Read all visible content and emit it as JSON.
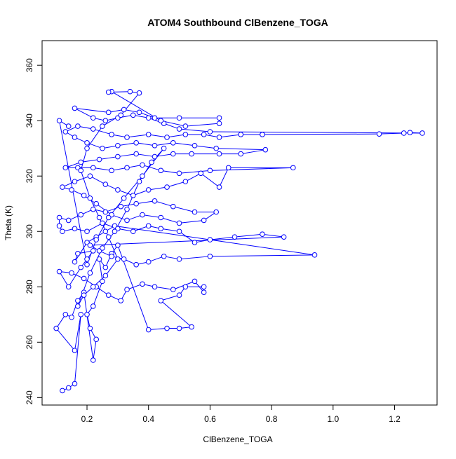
{
  "chart_data": {
    "type": "line",
    "style": "points-and-lines",
    "title": "ATOM4 Southbound ClBenzene_TOGA",
    "xlabel": "ClBenzene_TOGA",
    "ylabel": "Theta (K)",
    "xlim": [
      0.054,
      1.338
    ],
    "ylim": [
      237.3,
      368.9
    ],
    "xticks": [
      "0.2",
      "0.4",
      "0.6",
      "0.8",
      "1.0",
      "1.2"
    ],
    "xtick_values": [
      0.2,
      0.4,
      0.6,
      0.8,
      1.0,
      1.2
    ],
    "yticks": [
      "240",
      "260",
      "280",
      "300",
      "320",
      "340",
      "360"
    ],
    "ytick_values": [
      240,
      260,
      280,
      300,
      320,
      340,
      360
    ],
    "grid": false,
    "series_color": "#0000ff",
    "points": [
      [
        0.12,
        242.5
      ],
      [
        0.14,
        243.5
      ],
      [
        0.16,
        245
      ],
      [
        0.18,
        270
      ],
      [
        0.16,
        257
      ],
      [
        0.1,
        265
      ],
      [
        0.13,
        270
      ],
      [
        0.15,
        269
      ],
      [
        0.17,
        275
      ],
      [
        0.19,
        278
      ],
      [
        0.22,
        253.5
      ],
      [
        0.23,
        261
      ],
      [
        0.21,
        265
      ],
      [
        0.2,
        270
      ],
      [
        0.22,
        273
      ],
      [
        0.25,
        282
      ],
      [
        0.24,
        290
      ],
      [
        0.26,
        287
      ],
      [
        0.28,
        292
      ],
      [
        0.3,
        295
      ],
      [
        0.4,
        264.5
      ],
      [
        0.46,
        265
      ],
      [
        0.5,
        265
      ],
      [
        0.54,
        265.5
      ],
      [
        0.44,
        275
      ],
      [
        0.5,
        277
      ],
      [
        0.52,
        280
      ],
      [
        0.58,
        280
      ],
      [
        0.58,
        278
      ],
      [
        0.55,
        282
      ],
      [
        0.48,
        279
      ],
      [
        0.42,
        280
      ],
      [
        0.38,
        281
      ],
      [
        0.33,
        279
      ],
      [
        0.31,
        275
      ],
      [
        0.27,
        277
      ],
      [
        0.23,
        280
      ],
      [
        0.19,
        283
      ],
      [
        0.15,
        285
      ],
      [
        0.11,
        285.5
      ],
      [
        0.14,
        280
      ],
      [
        0.18,
        287
      ],
      [
        0.2,
        290
      ],
      [
        0.22,
        293
      ],
      [
        0.17,
        292
      ],
      [
        0.16,
        289
      ],
      [
        0.2,
        296
      ],
      [
        0.23,
        298
      ],
      [
        0.26,
        300
      ],
      [
        0.29,
        302
      ],
      [
        0.94,
        291.5
      ],
      [
        0.6,
        291
      ],
      [
        0.5,
        290
      ],
      [
        0.45,
        291
      ],
      [
        0.4,
        289
      ],
      [
        0.36,
        288
      ],
      [
        0.32,
        290
      ],
      [
        0.28,
        291
      ],
      [
        0.24,
        293
      ],
      [
        0.21,
        295
      ],
      [
        0.84,
        298
      ],
      [
        0.77,
        299
      ],
      [
        0.68,
        298
      ],
      [
        0.6,
        297
      ],
      [
        0.55,
        296
      ],
      [
        0.5,
        300
      ],
      [
        0.44,
        301
      ],
      [
        0.4,
        302
      ],
      [
        0.35,
        300
      ],
      [
        0.3,
        301
      ],
      [
        0.25,
        303
      ],
      [
        0.2,
        300
      ],
      [
        0.16,
        301
      ],
      [
        0.12,
        300
      ],
      [
        0.11,
        302
      ],
      [
        0.11,
        305
      ],
      [
        0.14,
        304
      ],
      [
        0.18,
        306
      ],
      [
        0.22,
        308
      ],
      [
        0.26,
        307
      ],
      [
        0.31,
        309
      ],
      [
        0.36,
        310
      ],
      [
        0.42,
        311
      ],
      [
        0.48,
        309
      ],
      [
        0.55,
        307
      ],
      [
        0.62,
        307
      ],
      [
        0.58,
        304
      ],
      [
        0.5,
        303
      ],
      [
        0.44,
        305
      ],
      [
        0.38,
        306
      ],
      [
        0.33,
        304
      ],
      [
        0.28,
        306
      ],
      [
        0.23,
        310
      ],
      [
        0.19,
        313
      ],
      [
        0.15,
        315
      ],
      [
        0.12,
        316
      ],
      [
        0.16,
        318
      ],
      [
        0.21,
        320
      ],
      [
        0.26,
        317
      ],
      [
        0.3,
        315
      ],
      [
        0.35,
        313
      ],
      [
        0.4,
        315
      ],
      [
        0.46,
        316
      ],
      [
        0.52,
        318
      ],
      [
        0.57,
        321
      ],
      [
        0.63,
        316
      ],
      [
        0.66,
        323
      ],
      [
        0.87,
        323
      ],
      [
        0.6,
        322
      ],
      [
        0.5,
        321
      ],
      [
        0.44,
        322
      ],
      [
        0.38,
        324
      ],
      [
        0.33,
        323
      ],
      [
        0.28,
        322
      ],
      [
        0.22,
        323
      ],
      [
        0.17,
        323
      ],
      [
        0.13,
        323
      ],
      [
        0.18,
        325
      ],
      [
        0.24,
        326
      ],
      [
        0.3,
        327
      ],
      [
        0.36,
        328
      ],
      [
        0.42,
        327
      ],
      [
        0.48,
        328
      ],
      [
        0.54,
        328
      ],
      [
        0.63,
        328
      ],
      [
        0.7,
        328
      ],
      [
        0.78,
        329.5
      ],
      [
        0.62,
        330
      ],
      [
        0.55,
        331
      ],
      [
        0.48,
        332
      ],
      [
        0.42,
        331
      ],
      [
        0.36,
        332
      ],
      [
        0.3,
        331
      ],
      [
        0.25,
        330
      ],
      [
        0.2,
        332
      ],
      [
        0.16,
        334
      ],
      [
        0.13,
        336
      ],
      [
        0.17,
        338
      ],
      [
        0.22,
        337
      ],
      [
        0.28,
        335
      ],
      [
        0.33,
        334
      ],
      [
        0.4,
        335
      ],
      [
        0.46,
        334
      ],
      [
        0.52,
        335
      ],
      [
        0.58,
        335
      ],
      [
        0.63,
        334
      ],
      [
        0.7,
        335
      ],
      [
        0.77,
        335
      ],
      [
        1.15,
        335.2
      ],
      [
        1.23,
        335.5
      ],
      [
        1.25,
        335.7
      ],
      [
        1.29,
        335.5
      ],
      [
        0.6,
        336
      ],
      [
        0.5,
        337
      ],
      [
        0.45,
        339
      ],
      [
        0.4,
        341
      ],
      [
        0.35,
        342
      ],
      [
        0.3,
        341
      ],
      [
        0.26,
        340
      ],
      [
        0.22,
        341
      ],
      [
        0.16,
        344.5
      ],
      [
        0.27,
        343
      ],
      [
        0.32,
        344
      ],
      [
        0.37,
        343
      ],
      [
        0.42,
        341
      ],
      [
        0.5,
        341
      ],
      [
        0.63,
        341
      ],
      [
        0.63,
        339
      ],
      [
        0.52,
        338
      ],
      [
        0.44,
        340
      ],
      [
        0.28,
        350.5
      ],
      [
        0.27,
        350.3
      ],
      [
        0.34,
        350.5
      ],
      [
        0.37,
        350
      ],
      [
        0.31,
        342
      ],
      [
        0.25,
        338
      ],
      [
        0.2,
        330
      ],
      [
        0.18,
        322
      ],
      [
        0.21,
        312
      ],
      [
        0.24,
        305
      ],
      [
        0.27,
        298
      ],
      [
        0.3,
        290
      ],
      [
        0.26,
        284
      ],
      [
        0.22,
        280
      ],
      [
        0.19,
        277
      ],
      [
        0.17,
        273
      ],
      [
        0.21,
        285
      ],
      [
        0.25,
        294
      ],
      [
        0.29,
        300
      ],
      [
        0.33,
        308
      ],
      [
        0.37,
        318
      ],
      [
        0.41,
        325
      ],
      [
        0.45,
        330
      ],
      [
        0.38,
        320
      ],
      [
        0.32,
        312
      ],
      [
        0.27,
        305
      ],
      [
        0.23,
        297
      ],
      [
        0.2,
        288
      ],
      [
        0.11,
        340
      ],
      [
        0.14,
        338
      ]
    ]
  }
}
